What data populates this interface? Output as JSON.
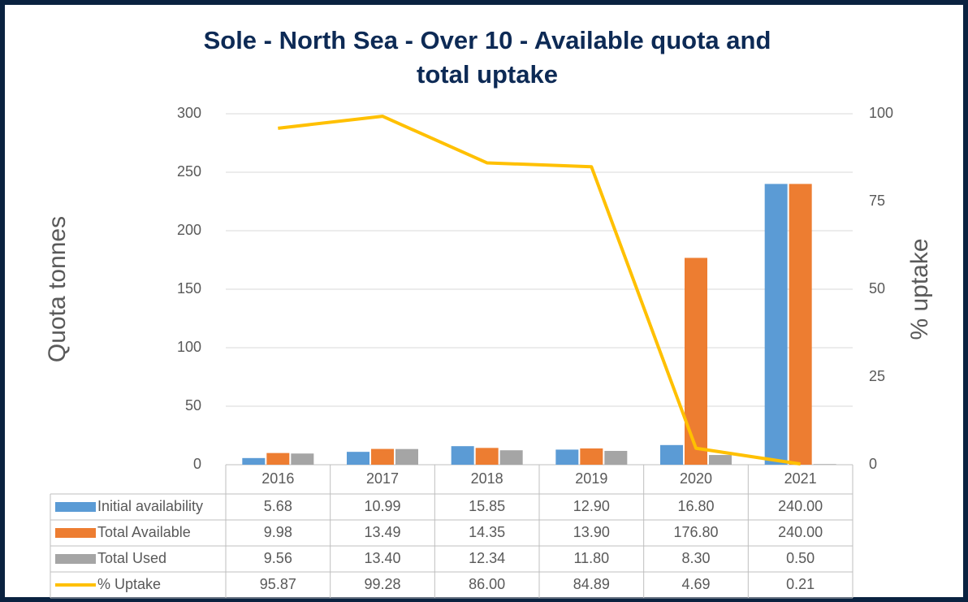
{
  "chart_data": {
    "type": "bar",
    "title": [
      "Sole - North Sea - Over 10 - Available quota and",
      "total uptake"
    ],
    "ylabel": "Quota tonnes",
    "y2label": "% uptake",
    "categories": [
      "2016",
      "2017",
      "2018",
      "2019",
      "2020",
      "2021"
    ],
    "ylim": [
      0,
      300
    ],
    "yticks": [
      0,
      50,
      100,
      150,
      200,
      250,
      300
    ],
    "y2lim": [
      0,
      100
    ],
    "y2ticks": [
      0,
      25,
      50,
      75,
      100
    ],
    "grid": true,
    "series": [
      {
        "name": "Initial availability",
        "type": "bar",
        "color": "#5b9bd5",
        "values": [
          5.68,
          10.99,
          15.85,
          12.9,
          16.8,
          240
        ],
        "value_labels": [
          "5.68",
          "10.99",
          "15.85",
          "12.90",
          "16.80",
          "240.00"
        ]
      },
      {
        "name": "Total Available",
        "type": "bar",
        "color": "#ed7d31",
        "values": [
          9.98,
          13.49,
          14.35,
          13.9,
          176.8,
          240
        ],
        "value_labels": [
          "9.98",
          "13.49",
          "14.35",
          "13.90",
          "176.80",
          "240.00"
        ]
      },
      {
        "name": "Total Used",
        "type": "bar",
        "color": "#a5a5a5",
        "values": [
          9.56,
          13.4,
          12.34,
          11.8,
          8.3,
          0.5
        ],
        "value_labels": [
          "9.56",
          "13.40",
          "12.34",
          "11.80",
          "8.30",
          "0.50"
        ]
      },
      {
        "name": "% Uptake",
        "type": "line",
        "axis": "y2",
        "color": "#ffc000",
        "values": [
          95.87,
          99.28,
          86,
          84.89,
          4.69,
          0.21
        ],
        "value_labels": [
          "95.87",
          "99.28",
          "86.00",
          "84.89",
          "4.69",
          "0.21"
        ]
      }
    ]
  }
}
